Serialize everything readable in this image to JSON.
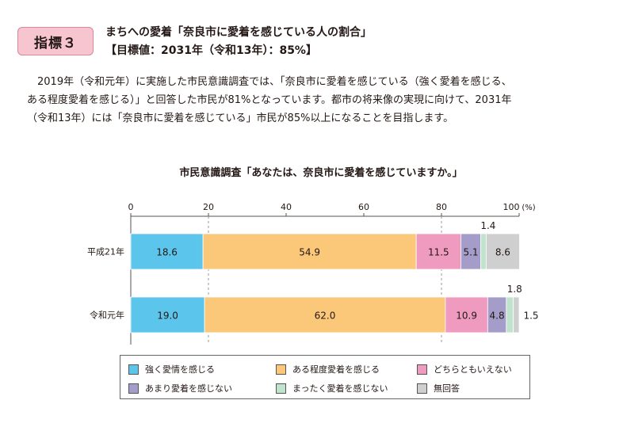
{
  "header": {
    "badge": "指標３",
    "title": "まちへの愛着「奈良市に愛着を感じている人の割合」",
    "target": "【目標値：2031年（令和13年）：85%】"
  },
  "body": {
    "lines": [
      "　2019年（令和元年）に実施した市民意識調査では、「奈良市に愛着を感じている（強く愛着を感じる、",
      "ある程度愛着を感じる）」と回答した市民が81%となっています。都市の将来像の実現に向けて、2031年",
      "（令和13年）には「奈良市に愛着を感じている」市民が85%以上になることを目指します。"
    ]
  },
  "chart_data": {
    "type": "bar",
    "orientation": "horizontal",
    "stacked": true,
    "title": "市民意識調査「あなたは、奈良市に愛着を感じていますか。」",
    "unit_label": "(%)",
    "xlim": [
      0,
      100
    ],
    "xticks": [
      "0",
      "20",
      "40",
      "60",
      "80",
      "100"
    ],
    "grid": "dashed vertical at 20, 80",
    "categories": [
      "平成21年",
      "令和元年"
    ],
    "series": [
      {
        "name": "強く愛情を感じる",
        "values": [
          18.6,
          19.0
        ],
        "color": "#5bc5ec"
      },
      {
        "name": "ある程度愛着を感じる",
        "values": [
          54.9,
          62.0
        ],
        "color": "#fbc779"
      },
      {
        "name": "どちらともいえない",
        "values": [
          11.5,
          10.9
        ],
        "color": "#ef9bc0"
      },
      {
        "name": "あまり愛着を感じない",
        "values": [
          5.1,
          4.8
        ],
        "color": "#a49dc9"
      },
      {
        "name": "まったく愛着を感じない",
        "values": [
          1.4,
          1.8
        ],
        "color": "#bfe3cc"
      },
      {
        "name": "無回答",
        "values": [
          8.6,
          1.5
        ],
        "color": "#cfcfcf"
      }
    ],
    "labels": [
      [
        "18.6",
        "54.9",
        "11.5",
        "5.1",
        "1.4",
        "8.6"
      ],
      [
        "19.0",
        "62.0",
        "10.9",
        "4.8",
        "1.8",
        "1.5"
      ]
    ],
    "legend_position": "bottom"
  }
}
